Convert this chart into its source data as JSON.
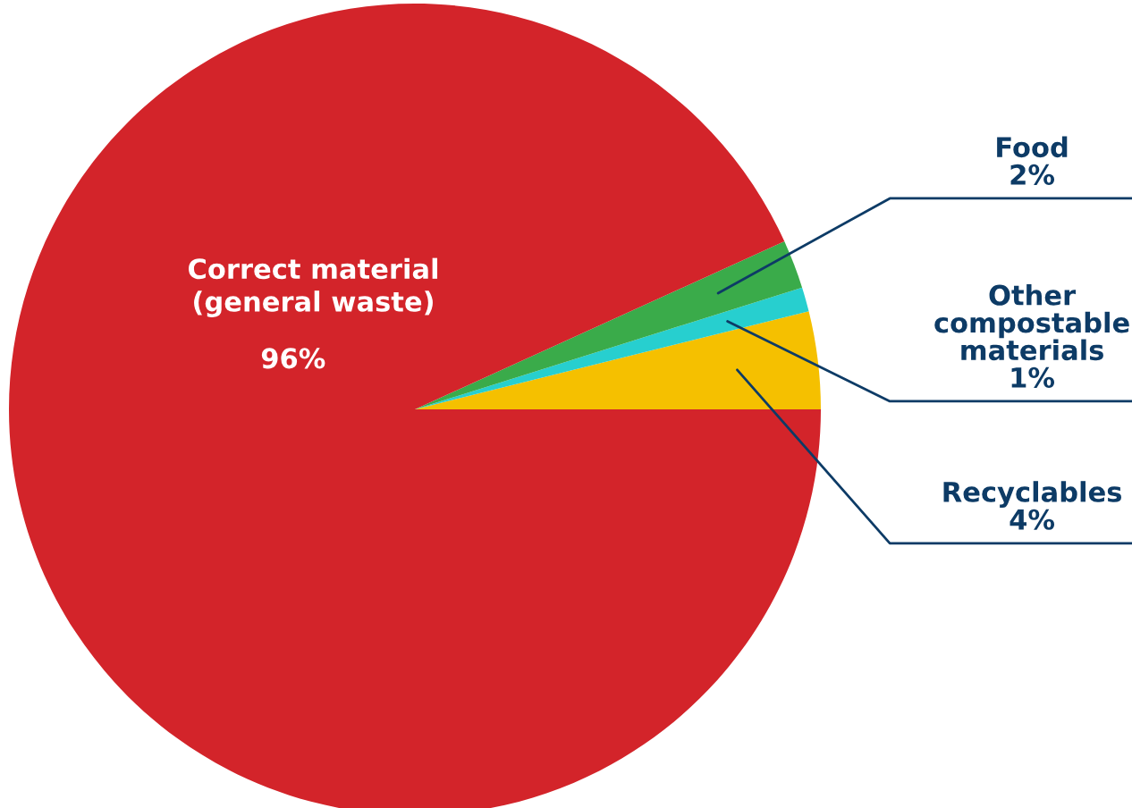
{
  "chart_data": {
    "type": "pie",
    "categories": [
      "Recyclables",
      "Other\ncompostable\nmaterials",
      "Food",
      "Correct material\n(general waste)"
    ],
    "values": [
      4,
      1,
      2,
      96
    ],
    "value_labels": [
      "4%",
      "1%",
      "2%",
      "96%"
    ],
    "colors": [
      "#f5c000",
      "#27cfcf",
      "#3aab4a",
      "#d3242a"
    ],
    "legend": false
  }
}
